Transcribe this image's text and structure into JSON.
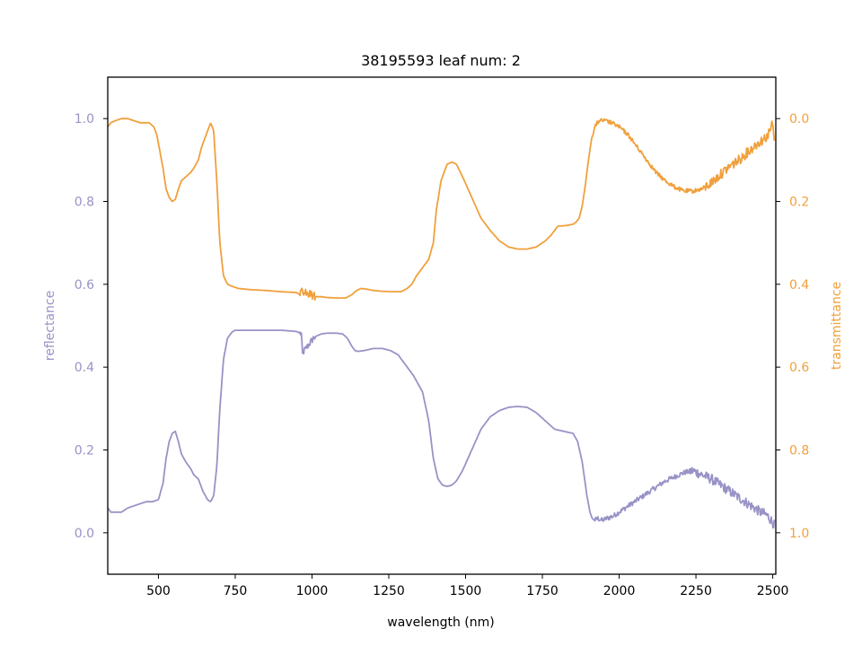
{
  "chart_data": {
    "type": "line",
    "title": "38195593 leaf num: 2",
    "xlabel": "wavelength (nm)",
    "ylabel_left": "reflectance",
    "ylabel_right": "transmittance",
    "xlim": [
      335,
      2510
    ],
    "ylim_left": [
      -0.1,
      1.1
    ],
    "ylim_right": [
      1.1,
      -0.1
    ],
    "right_axis_inverted": true,
    "x_ticks": [
      500,
      750,
      1000,
      1250,
      1500,
      1750,
      2000,
      2250,
      2500
    ],
    "x_tick_labels": [
      "500",
      "750",
      "1000",
      "1250",
      "1500",
      "1750",
      "2000",
      "2250",
      "2500"
    ],
    "y_left_ticks": [
      0.0,
      0.2,
      0.4,
      0.6,
      0.8,
      1.0
    ],
    "y_left_tick_labels": [
      "0.0",
      "0.2",
      "0.4",
      "0.6",
      "0.8",
      "1.0"
    ],
    "y_right_ticks": [
      0.0,
      0.2,
      0.4,
      0.6,
      0.8,
      1.0
    ],
    "y_right_tick_labels": [
      "0.0",
      "0.2",
      "0.4",
      "0.6",
      "0.8",
      "1.0"
    ],
    "grid": false,
    "series": [
      {
        "axis": "left",
        "color": "#9893c6",
        "x": [
          335,
          345,
          360,
          380,
          400,
          420,
          440,
          460,
          480,
          500,
          515,
          525,
          535,
          545,
          555,
          565,
          575,
          590,
          605,
          615,
          630,
          645,
          660,
          670,
          680,
          690,
          700,
          712,
          725,
          740,
          750,
          760,
          800,
          850,
          900,
          950,
          966,
          968,
          975,
          990,
          1000,
          1005,
          1015,
          1030,
          1050,
          1080,
          1100,
          1115,
          1130,
          1140,
          1150,
          1170,
          1200,
          1230,
          1255,
          1280,
          1300,
          1330,
          1360,
          1380,
          1395,
          1410,
          1425,
          1440,
          1455,
          1470,
          1490,
          1520,
          1550,
          1580,
          1610,
          1640,
          1670,
          1700,
          1730,
          1760,
          1790,
          1820,
          1850,
          1865,
          1880,
          1895,
          1905,
          1912,
          1920,
          1930,
          1945,
          1960,
          1980,
          2000,
          2030,
          2060,
          2090,
          2120,
          2150,
          2180,
          2210,
          2240,
          2270,
          2300,
          2320,
          2340,
          2360,
          2380,
          2400,
          2420,
          2440,
          2460,
          2475,
          2485,
          2490,
          2495,
          2500,
          2505
        ],
        "y": [
          0.06,
          0.05,
          0.05,
          0.05,
          0.06,
          0.065,
          0.07,
          0.075,
          0.075,
          0.08,
          0.12,
          0.18,
          0.22,
          0.24,
          0.245,
          0.22,
          0.19,
          0.17,
          0.155,
          0.14,
          0.13,
          0.1,
          0.08,
          0.075,
          0.09,
          0.16,
          0.3,
          0.42,
          0.47,
          0.485,
          0.489,
          0.489,
          0.489,
          0.489,
          0.489,
          0.486,
          0.48,
          0.43,
          0.44,
          0.455,
          0.465,
          0.47,
          0.475,
          0.48,
          0.482,
          0.482,
          0.48,
          0.47,
          0.45,
          0.44,
          0.438,
          0.44,
          0.445,
          0.445,
          0.44,
          0.43,
          0.41,
          0.38,
          0.34,
          0.27,
          0.18,
          0.13,
          0.115,
          0.112,
          0.115,
          0.125,
          0.15,
          0.2,
          0.25,
          0.28,
          0.295,
          0.303,
          0.305,
          0.303,
          0.29,
          0.27,
          0.25,
          0.245,
          0.24,
          0.22,
          0.17,
          0.09,
          0.05,
          0.035,
          0.03,
          0.035,
          0.03,
          0.035,
          0.04,
          0.05,
          0.065,
          0.08,
          0.095,
          0.11,
          0.125,
          0.135,
          0.145,
          0.15,
          0.14,
          0.13,
          0.12,
          0.11,
          0.1,
          0.09,
          0.08,
          0.07,
          0.06,
          0.05,
          0.045,
          0.04,
          0.035,
          0.03,
          0.025,
          0.02
        ],
        "noise": [
          [
            2230,
            2510,
            0.012
          ],
          [
            1920,
            2230,
            0.006
          ],
          [
            960,
            1010,
            0.008
          ]
        ]
      },
      {
        "axis": "right",
        "color": "#f0a03c",
        "x": [
          335,
          345,
          360,
          380,
          400,
          420,
          440,
          460,
          470,
          485,
          495,
          505,
          515,
          525,
          535,
          545,
          555,
          565,
          575,
          590,
          605,
          615,
          630,
          640,
          650,
          660,
          670,
          680,
          690,
          700,
          712,
          725,
          740,
          760,
          800,
          850,
          900,
          950,
          960,
          966,
          970,
          980,
          995,
          1000,
          1010,
          1030,
          1050,
          1080,
          1110,
          1130,
          1145,
          1160,
          1180,
          1200,
          1230,
          1260,
          1290,
          1310,
          1325,
          1340,
          1360,
          1380,
          1395,
          1405,
          1420,
          1440,
          1455,
          1470,
          1490,
          1520,
          1550,
          1580,
          1610,
          1640,
          1670,
          1700,
          1730,
          1760,
          1780,
          1800,
          1830,
          1850,
          1860,
          1870,
          1880,
          1890,
          1900,
          1910,
          1920,
          1935,
          1950,
          1975,
          2000,
          2030,
          2060,
          2090,
          2120,
          2150,
          2180,
          2210,
          2240,
          2270,
          2300,
          2330,
          2360,
          2390,
          2420,
          2450,
          2470,
          2485,
          2490,
          2495,
          2500,
          2505
        ],
        "y": [
          0.02,
          0.01,
          0.005,
          0.0,
          0.0,
          0.005,
          0.01,
          0.01,
          0.01,
          0.02,
          0.04,
          0.08,
          0.12,
          0.17,
          0.19,
          0.2,
          0.195,
          0.17,
          0.15,
          0.14,
          0.13,
          0.12,
          0.1,
          0.07,
          0.05,
          0.03,
          0.01,
          0.03,
          0.15,
          0.3,
          0.38,
          0.4,
          0.405,
          0.41,
          0.413,
          0.415,
          0.418,
          0.42,
          0.425,
          0.4,
          0.415,
          0.42,
          0.425,
          0.425,
          0.43,
          0.43,
          0.432,
          0.433,
          0.433,
          0.425,
          0.415,
          0.41,
          0.412,
          0.415,
          0.417,
          0.418,
          0.418,
          0.41,
          0.4,
          0.38,
          0.36,
          0.34,
          0.3,
          0.22,
          0.15,
          0.11,
          0.105,
          0.11,
          0.14,
          0.19,
          0.24,
          0.27,
          0.295,
          0.31,
          0.315,
          0.315,
          0.31,
          0.295,
          0.28,
          0.26,
          0.258,
          0.255,
          0.25,
          0.24,
          0.21,
          0.16,
          0.1,
          0.05,
          0.02,
          0.005,
          0.005,
          0.01,
          0.02,
          0.04,
          0.07,
          0.1,
          0.13,
          0.15,
          0.165,
          0.175,
          0.175,
          0.17,
          0.155,
          0.135,
          0.115,
          0.1,
          0.08,
          0.06,
          0.05,
          0.04,
          0.03,
          0.02,
          0.01,
          0.06
        ],
        "noise": [
          [
            2280,
            2510,
            0.012
          ],
          [
            1910,
            2280,
            0.005
          ],
          [
            960,
            1010,
            0.01
          ]
        ]
      }
    ]
  }
}
